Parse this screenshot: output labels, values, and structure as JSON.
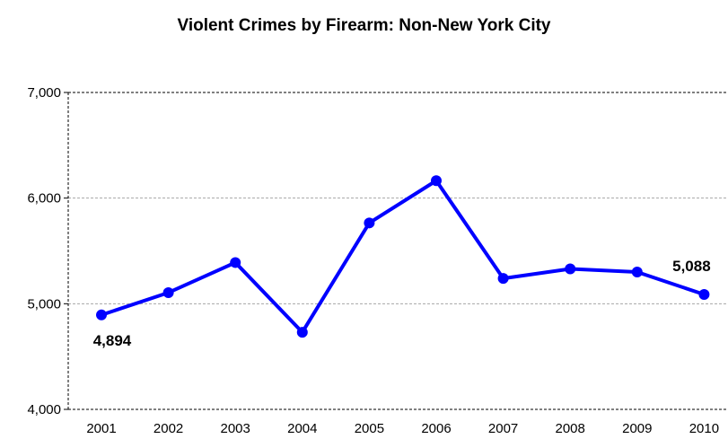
{
  "chart_data": {
    "type": "line",
    "title": "Violent Crimes by Firearm: Non-New York City",
    "xlabel": "",
    "ylabel": "",
    "categories": [
      "2001",
      "2002",
      "2003",
      "2004",
      "2005",
      "2006",
      "2007",
      "2008",
      "2009",
      "2010"
    ],
    "series": [
      {
        "values": [
          4894,
          5105,
          5390,
          4730,
          5765,
          6165,
          5240,
          5330,
          5300,
          5088
        ]
      }
    ],
    "ylim": [
      4000,
      7000
    ],
    "yticks": [
      4000,
      5000,
      6000,
      7000
    ],
    "ytick_labels": [
      "4,000",
      "5,000",
      "6,000",
      "7,000"
    ],
    "data_labels": [
      {
        "index": 0,
        "text": "4,894"
      },
      {
        "index": 9,
        "text": "5,088"
      }
    ],
    "grid": "horizontal dashed",
    "legend": "none",
    "colors": {
      "line": "#0000ff",
      "marker": "#0000ff",
      "grid": "#a6a6a6",
      "axis": "#000000"
    }
  }
}
